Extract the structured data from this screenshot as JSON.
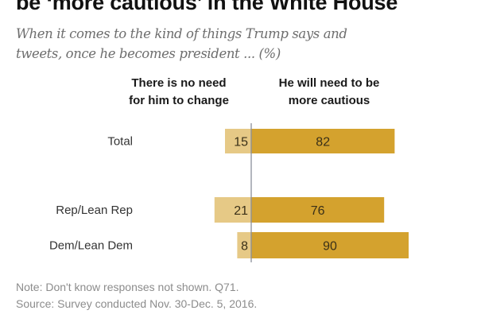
{
  "header": {
    "title": "be ‘more cautious’ in the White House",
    "subtitle": "When it comes to the kind of things Trump says and tweets, once he becomes president ... (%)"
  },
  "chart_data": {
    "type": "bar",
    "orientation": "horizontal-diverging",
    "title": "be ‘more cautious’ in the White House",
    "subtitle": "When it comes to the kind of things Trump says and tweets, once he becomes president ... (%)",
    "categories": [
      "Total",
      "Rep/Lean Rep",
      "Dem/Lean Dem"
    ],
    "series": [
      {
        "name": "There is no need for him to change",
        "header_lines": [
          "There is no need",
          "for him to change"
        ],
        "values": [
          15,
          21,
          8
        ],
        "color": "#e6c986",
        "direction": "left"
      },
      {
        "name": "He will need to be more cautious",
        "header_lines": [
          "He will need to be",
          "more cautious"
        ],
        "values": [
          82,
          76,
          90
        ],
        "color": "#d4a22e",
        "direction": "right"
      }
    ],
    "unit": "%",
    "axis_color": "#8a8f9c",
    "grid": false,
    "legend": "column headers above bars"
  },
  "footer": {
    "note": "Note: Don't know responses not shown. Q71.",
    "source": "Source: Survey conducted Nov. 30-Dec. 5, 2016."
  }
}
